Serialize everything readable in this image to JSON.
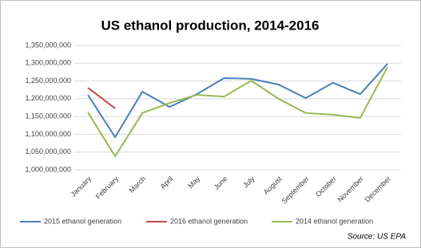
{
  "chart_data": {
    "type": "line",
    "title": "US ethanol production, 2014-2016",
    "categories": [
      "January",
      "February",
      "March",
      "April",
      "May",
      "June",
      "July",
      "August",
      "September",
      "October",
      "November",
      "December"
    ],
    "series": [
      {
        "name": "2015 ethanol generation",
        "color": "#4a7ebb",
        "values": [
          1211000000,
          1092000000,
          1220000000,
          1177000000,
          1213000000,
          1258000000,
          1256000000,
          1240000000,
          1202000000,
          1245000000,
          1213000000,
          1298000000
        ]
      },
      {
        "name": "2016 ethanol generation",
        "color": "#be4b48",
        "values": [
          1231000000,
          1173000000,
          null,
          null,
          null,
          null,
          null,
          null,
          null,
          null,
          null,
          null
        ]
      },
      {
        "name": "2014 ethanol generation",
        "color": "#98b954",
        "values": [
          1162000000,
          1038000000,
          1160000000,
          1188000000,
          1211000000,
          1206000000,
          1251000000,
          1200000000,
          1160000000,
          1155000000,
          1146000000,
          1289000000
        ]
      }
    ],
    "ylim": [
      1000000000,
      1350000000
    ],
    "yticks": [
      {
        "value": 1000000000,
        "label": "1,000,000,000"
      },
      {
        "value": 1050000000,
        "label": "1,050,000,000"
      },
      {
        "value": 1100000000,
        "label": "1,100,000,000"
      },
      {
        "value": 1150000000,
        "label": "1,150,000,000"
      },
      {
        "value": 1200000000,
        "label": "1,200,000,000"
      },
      {
        "value": 1250000000,
        "label": "1,250,000,000"
      },
      {
        "value": 1300000000,
        "label": "1,300,000,000"
      },
      {
        "value": 1350000000,
        "label": "1,350,000,000"
      }
    ],
    "grid": true,
    "legend": "bottom",
    "source": "Source: US EPA"
  }
}
